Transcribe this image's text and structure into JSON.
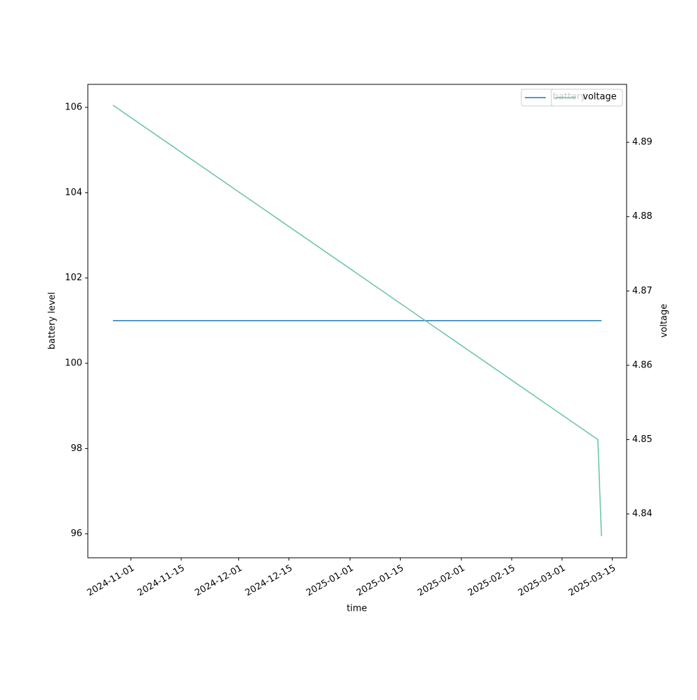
{
  "chart_data": {
    "type": "line",
    "x_label": "time",
    "y_label": "battery level",
    "y2_label": "voltage",
    "x": [
      "2024-10-27",
      "2025-03-11",
      "2025-03-12"
    ],
    "series": [
      {
        "name": "battery",
        "color": "#1f77b4",
        "values": [
          101,
          101,
          101
        ]
      },
      {
        "name": "voltage",
        "color": "#66c2a5",
        "axis": "y2",
        "values": [
          4.895,
          4.85,
          4.837
        ]
      }
    ],
    "xlim": [
      "2024-10-20",
      "2025-03-19"
    ],
    "xticks": [
      "2024-11-01",
      "2024-11-15",
      "2024-12-01",
      "2024-12-15",
      "2025-01-01",
      "2025-01-15",
      "2025-02-01",
      "2025-02-15",
      "2025-03-01",
      "2025-03-15"
    ],
    "ylim": [
      95.44,
      106.54
    ],
    "yticks": [
      96,
      98,
      100,
      102,
      104,
      106
    ],
    "y2lim": [
      4.8341,
      4.8978
    ],
    "y2ticks": [
      4.84,
      4.85,
      4.86,
      4.87,
      4.88,
      4.89
    ],
    "legend": "upper right"
  }
}
